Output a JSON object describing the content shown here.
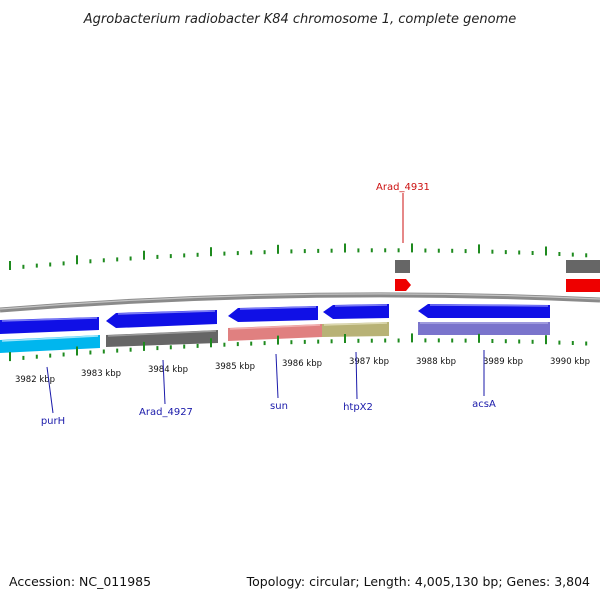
{
  "title": "Agrobacterium radiobacter K84 chromosome 1, complete genome",
  "footer": {
    "accession": "Accession: NC_011985",
    "summary": "Topology: circular; Length: 4,005,130 bp; Genes: 3,804"
  },
  "scale": {
    "unit": "kbp",
    "tick_labels": [
      "3982 kbp",
      "3983 kbp",
      "3984 kbp",
      "3985 kbp",
      "3986 kbp",
      "3987 kbp",
      "3988 kbp",
      "3989 kbp",
      "3990 kbp"
    ]
  },
  "gene_labels": [
    {
      "text": "purH",
      "color": "#1a1aaa"
    },
    {
      "text": "Arad_4927",
      "color": "#1a1aaa"
    },
    {
      "text": "sun",
      "color": "#1a1aaa"
    },
    {
      "text": "htpX2",
      "color": "#1a1aaa"
    },
    {
      "text": "acsA",
      "color": "#1a1aaa"
    },
    {
      "text": "Arad_4931",
      "color": "#cc1111"
    }
  ],
  "colors": {
    "backbone": "#8a8a8a",
    "tick_marks": "#1e8a1e",
    "forward_gene": "#1010e6",
    "reverse_cyan": "#00b6ee",
    "gray_gene": "#666666",
    "salmon_gene": "#e08080",
    "olive_gene": "#b8b276",
    "lavender_gene": "#7a74cc",
    "red_gene": "#ee0000"
  }
}
